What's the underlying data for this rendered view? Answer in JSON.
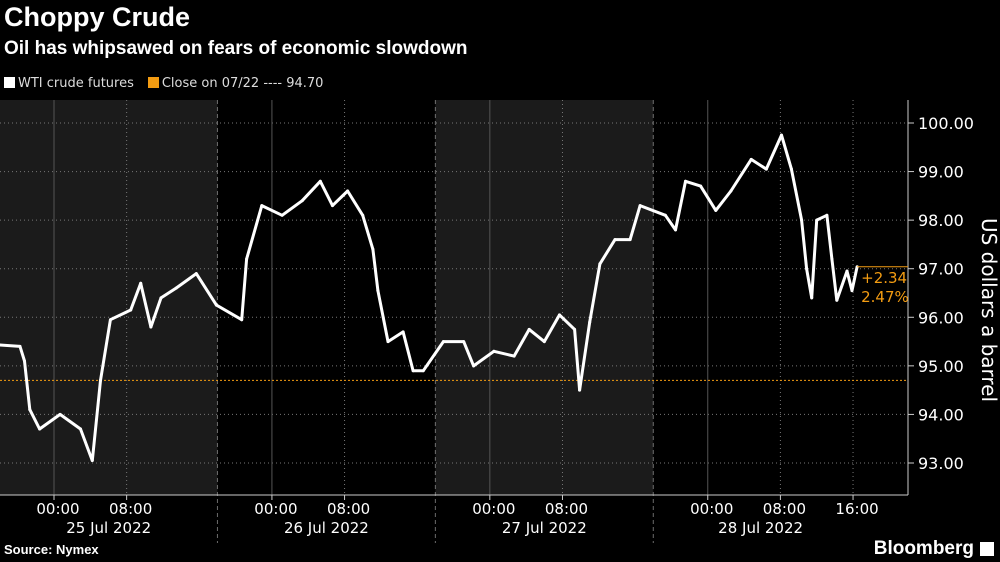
{
  "title": "Choppy Crude",
  "subtitle": "Oil has whipsawed on fears of economic slowdown",
  "legend": [
    {
      "label": "WTI crude futures",
      "color": "#ffffff"
    },
    {
      "label": "Close on 07/22 ---- 94.70",
      "color": "#f39c12"
    }
  ],
  "source": "Source: Nymex",
  "brand": "Bloomberg",
  "colors": {
    "line": "#ffffff",
    "reference": "#f39c12",
    "shade": "#1b1b1b",
    "background": "#000000"
  },
  "chart_data": {
    "type": "line",
    "title": "Choppy Crude",
    "ylabel": "US dollars a barrel",
    "ylim": [
      92.6,
      100.5
    ],
    "yticks": [
      "93.00",
      "94.00",
      "95.00",
      "96.00",
      "97.00",
      "98.00",
      "99.00",
      "100.00"
    ],
    "xlim": [
      "2022-07-24 18:00",
      "2022-07-28 23:00"
    ],
    "xtick_labels": [
      {
        "t": "2022-07-25 00:00",
        "label": "00:00"
      },
      {
        "t": "2022-07-25 08:00",
        "label": "08:00"
      },
      {
        "t": "2022-07-26 00:00",
        "label": "00:00"
      },
      {
        "t": "2022-07-26 08:00",
        "label": "08:00"
      },
      {
        "t": "2022-07-27 00:00",
        "label": "00:00"
      },
      {
        "t": "2022-07-27 08:00",
        "label": "08:00"
      },
      {
        "t": "2022-07-28 00:00",
        "label": "00:00"
      },
      {
        "t": "2022-07-28 08:00",
        "label": "08:00"
      },
      {
        "t": "2022-07-28 16:00",
        "label": "16:00"
      }
    ],
    "date_labels": [
      {
        "start": "2022-07-24 18:00",
        "end": "2022-07-25 18:00",
        "label": "25 Jul 2022"
      },
      {
        "start": "2022-07-25 18:00",
        "end": "2022-07-26 18:00",
        "label": "26 Jul 2022"
      },
      {
        "start": "2022-07-26 18:00",
        "end": "2022-07-27 18:00",
        "label": "27 Jul 2022"
      },
      {
        "start": "2022-07-27 18:00",
        "end": "2022-07-28 23:00",
        "label": "28 Jul 2022"
      }
    ],
    "reference_line": {
      "value": 94.7,
      "label": "Close on 07/22"
    },
    "last_annotation": {
      "value": 97.04,
      "change": "+2.34",
      "pct": "2.47%"
    },
    "series": [
      {
        "name": "WTI crude futures",
        "points": [
          [
            "2022-07-24 18:00",
            95.43
          ],
          [
            "2022-07-24 20:15",
            95.4
          ],
          [
            "2022-07-24 20:45",
            95.1
          ],
          [
            "2022-07-24 21:20",
            94.1
          ],
          [
            "2022-07-24 22:25",
            93.7
          ],
          [
            "2022-07-25 00:40",
            94.0
          ],
          [
            "2022-07-25 02:55",
            93.7
          ],
          [
            "2022-07-25 04:13",
            93.05
          ],
          [
            "2022-07-25 05:07",
            94.7
          ],
          [
            "2022-07-25 06:13",
            95.95
          ],
          [
            "2022-07-25 08:27",
            96.15
          ],
          [
            "2022-07-25 09:33",
            96.7
          ],
          [
            "2022-07-25 10:40",
            95.8
          ],
          [
            "2022-07-25 11:47",
            96.4
          ],
          [
            "2022-07-25 13:27",
            96.6
          ],
          [
            "2022-07-25 15:40",
            96.9
          ],
          [
            "2022-07-25 17:53",
            96.25
          ],
          [
            "2022-07-25 20:40",
            95.95
          ],
          [
            "2022-07-25 21:13",
            97.2
          ],
          [
            "2022-07-25 22:53",
            98.3
          ],
          [
            "2022-07-26 01:07",
            98.1
          ],
          [
            "2022-07-26 03:20",
            98.4
          ],
          [
            "2022-07-26 05:20",
            98.8
          ],
          [
            "2022-07-26 06:40",
            98.3
          ],
          [
            "2022-07-26 08:20",
            98.6
          ],
          [
            "2022-07-26 10:00",
            98.1
          ],
          [
            "2022-07-26 11:07",
            97.4
          ],
          [
            "2022-07-26 11:40",
            96.55
          ],
          [
            "2022-07-26 12:47",
            95.5
          ],
          [
            "2022-07-26 14:27",
            95.7
          ],
          [
            "2022-07-26 15:33",
            94.9
          ],
          [
            "2022-07-26 16:40",
            94.9
          ],
          [
            "2022-07-26 18:53",
            95.5
          ],
          [
            "2022-07-26 21:07",
            95.5
          ],
          [
            "2022-07-26 22:13",
            95.0
          ],
          [
            "2022-07-27 00:27",
            95.3
          ],
          [
            "2022-07-27 02:40",
            95.2
          ],
          [
            "2022-07-27 04:20",
            95.75
          ],
          [
            "2022-07-27 06:00",
            95.5
          ],
          [
            "2022-07-27 07:40",
            96.05
          ],
          [
            "2022-07-27 09:20",
            95.75
          ],
          [
            "2022-07-27 09:53",
            94.5
          ],
          [
            "2022-07-27 11:00",
            95.9
          ],
          [
            "2022-07-27 12:07",
            97.1
          ],
          [
            "2022-07-27 13:47",
            97.6
          ],
          [
            "2022-07-27 15:27",
            97.6
          ],
          [
            "2022-07-27 16:33",
            98.3
          ],
          [
            "2022-07-27 19:20",
            98.1
          ],
          [
            "2022-07-27 20:27",
            97.8
          ],
          [
            "2022-07-27 21:33",
            98.8
          ],
          [
            "2022-07-27 23:13",
            98.7
          ],
          [
            "2022-07-28 00:53",
            98.2
          ],
          [
            "2022-07-28 02:33",
            98.6
          ],
          [
            "2022-07-28 04:47",
            99.25
          ],
          [
            "2022-07-28 06:27",
            99.05
          ],
          [
            "2022-07-28 08:07",
            99.75
          ],
          [
            "2022-07-28 09:13",
            99.05
          ],
          [
            "2022-07-28 10:20",
            98.0
          ],
          [
            "2022-07-28 10:53",
            97.0
          ],
          [
            "2022-07-28 11:27",
            96.4
          ],
          [
            "2022-07-28 12:00",
            98.0
          ],
          [
            "2022-07-28 13:07",
            98.1
          ],
          [
            "2022-07-28 13:40",
            97.2
          ],
          [
            "2022-07-28 14:13",
            96.35
          ],
          [
            "2022-07-28 15:20",
            96.95
          ],
          [
            "2022-07-28 15:53",
            96.55
          ],
          [
            "2022-07-28 16:27",
            97.04
          ]
        ]
      }
    ]
  }
}
